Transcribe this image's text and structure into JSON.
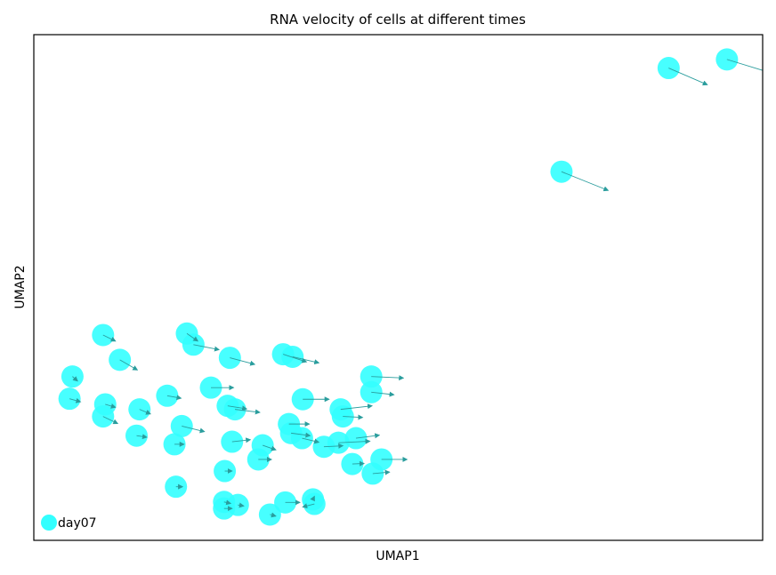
{
  "chart_data": {
    "type": "scatter",
    "title": "RNA velocity of cells at different times",
    "xlabel": "UMAP1",
    "ylabel": "UMAP2",
    "xlim": [
      0,
      100
    ],
    "ylim": [
      0,
      100
    ],
    "grid": false,
    "legend": {
      "position": "bottom-left",
      "entries": [
        {
          "label": "day07",
          "color": "#33ffff"
        }
      ]
    },
    "colors": {
      "point": "#33ffff",
      "arrow": "#2a9d9d",
      "axes": "#000000"
    },
    "series": [
      {
        "name": "day07",
        "points": [
          {
            "x": 87.1,
            "y": 93.4,
            "u": 5.3,
            "v": -3.3
          },
          {
            "x": 95.1,
            "y": 95.1,
            "u": 5.0,
            "v": -2.2
          },
          {
            "x": 72.4,
            "y": 72.9,
            "u": 6.4,
            "v": -3.7
          },
          {
            "x": 9.5,
            "y": 40.6,
            "u": 1.7,
            "v": -1.2
          },
          {
            "x": 11.8,
            "y": 35.7,
            "u": 2.4,
            "v": -2.0
          },
          {
            "x": 21.0,
            "y": 40.9,
            "u": 1.5,
            "v": -1.5
          },
          {
            "x": 21.9,
            "y": 38.7,
            "u": 3.5,
            "v": -1.0
          },
          {
            "x": 26.9,
            "y": 36.1,
            "u": 3.4,
            "v": -1.3
          },
          {
            "x": 34.2,
            "y": 36.8,
            "u": 3.2,
            "v": -1.5
          },
          {
            "x": 35.5,
            "y": 36.3,
            "u": 3.6,
            "v": -1.2
          },
          {
            "x": 5.3,
            "y": 32.4,
            "u": 0.7,
            "v": -0.9
          },
          {
            "x": 4.9,
            "y": 28.0,
            "u": 1.5,
            "v": -0.6
          },
          {
            "x": 9.8,
            "y": 26.9,
            "u": 1.4,
            "v": -0.6
          },
          {
            "x": 9.5,
            "y": 24.5,
            "u": 2.0,
            "v": -1.4
          },
          {
            "x": 14.5,
            "y": 25.9,
            "u": 1.5,
            "v": -0.9
          },
          {
            "x": 18.3,
            "y": 28.6,
            "u": 1.9,
            "v": -0.5
          },
          {
            "x": 24.3,
            "y": 30.2,
            "u": 3.1,
            "v": 0.0
          },
          {
            "x": 26.6,
            "y": 26.6,
            "u": 2.6,
            "v": -0.6
          },
          {
            "x": 27.6,
            "y": 25.9,
            "u": 3.4,
            "v": -0.6
          },
          {
            "x": 36.9,
            "y": 27.9,
            "u": 3.6,
            "v": 0.0
          },
          {
            "x": 42.1,
            "y": 25.9,
            "u": 4.3,
            "v": 0.7
          },
          {
            "x": 42.4,
            "y": 24.5,
            "u": 2.7,
            "v": -0.2
          },
          {
            "x": 46.3,
            "y": 32.4,
            "u": 4.4,
            "v": -0.3
          },
          {
            "x": 46.3,
            "y": 29.3,
            "u": 3.1,
            "v": -0.5
          },
          {
            "x": 20.3,
            "y": 22.6,
            "u": 3.1,
            "v": -1.1
          },
          {
            "x": 14.1,
            "y": 20.7,
            "u": 1.4,
            "v": -0.3
          },
          {
            "x": 19.3,
            "y": 19.0,
            "u": 1.3,
            "v": 0.0
          },
          {
            "x": 27.2,
            "y": 19.5,
            "u": 2.5,
            "v": 0.4
          },
          {
            "x": 31.4,
            "y": 18.8,
            "u": 1.8,
            "v": -0.9
          },
          {
            "x": 30.8,
            "y": 16.0,
            "u": 1.8,
            "v": 0.0
          },
          {
            "x": 35.0,
            "y": 23.0,
            "u": 2.8,
            "v": 0.0
          },
          {
            "x": 35.3,
            "y": 21.2,
            "u": 2.6,
            "v": -0.5
          },
          {
            "x": 36.8,
            "y": 20.2,
            "u": 2.3,
            "v": -0.8
          },
          {
            "x": 39.8,
            "y": 18.5,
            "u": 2.6,
            "v": 0.2
          },
          {
            "x": 41.8,
            "y": 19.3,
            "u": 4.3,
            "v": 0.3
          },
          {
            "x": 44.2,
            "y": 20.2,
            "u": 3.2,
            "v": 0.6
          },
          {
            "x": 43.7,
            "y": 15.1,
            "u": 1.6,
            "v": 0.1
          },
          {
            "x": 47.7,
            "y": 16.0,
            "u": 3.5,
            "v": 0.0
          },
          {
            "x": 46.5,
            "y": 13.2,
            "u": 2.3,
            "v": 0.3
          },
          {
            "x": 26.2,
            "y": 13.7,
            "u": 1.0,
            "v": 0.0
          },
          {
            "x": 19.5,
            "y": 10.6,
            "u": 0.9,
            "v": 0.0
          },
          {
            "x": 26.1,
            "y": 7.6,
            "u": 0.9,
            "v": -0.3
          },
          {
            "x": 26.1,
            "y": 6.3,
            "u": 1.1,
            "v": 0.0
          },
          {
            "x": 28.0,
            "y": 7.0,
            "u": 0.8,
            "v": -0.2
          },
          {
            "x": 32.4,
            "y": 5.1,
            "u": 0.8,
            "v": -0.3
          },
          {
            "x": 34.5,
            "y": 7.5,
            "u": 2.0,
            "v": 0.0
          },
          {
            "x": 38.3,
            "y": 8.1,
            "u": 0.2,
            "v": 0.6
          },
          {
            "x": 38.5,
            "y": 7.2,
            "u": -1.6,
            "v": -0.6
          }
        ]
      }
    ]
  }
}
